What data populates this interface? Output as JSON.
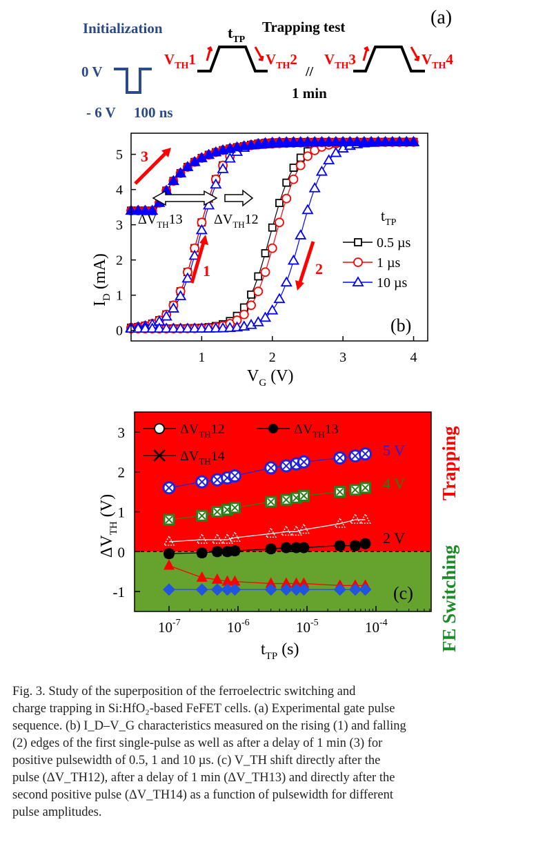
{
  "panel_a": {
    "label": "(a)",
    "init_title": "Initialization",
    "zero_v": "0 V",
    "neg_v": "- 6 V",
    "pulse_width": "100 ns",
    "ttp_main": "t",
    "ttp_sub": "TP",
    "trap_title": "Trapping test",
    "break": "//",
    "delay": "1 min",
    "vth_labels": [
      {
        "main": "V",
        "sub": "TH",
        "num": "1"
      },
      {
        "main": "V",
        "sub": "TH",
        "num": "2"
      },
      {
        "main": "V",
        "sub": "TH",
        "num": "3"
      },
      {
        "main": "V",
        "sub": "TH",
        "num": "4"
      }
    ]
  },
  "chart_data": [
    {
      "id": "b",
      "type": "line",
      "panel_label": "(b)",
      "xlabel": "V",
      "xlabel_sub": "G",
      "xlabel_unit": " (V)",
      "ylabel": "I",
      "ylabel_sub": "D",
      "ylabel_unit": " (mA)",
      "xlim": [
        0,
        4.2
      ],
      "ylim": [
        -0.3,
        5.6
      ],
      "xticks": [
        "1",
        "2",
        "3",
        "4"
      ],
      "yticks": [
        "0",
        "1",
        "2",
        "3",
        "4",
        "5"
      ],
      "legend_title_main": "t",
      "legend_title_sub": "TP",
      "annotations": {
        "arrow1": "1",
        "arrow2": "2",
        "arrow3": "3",
        "dvth13_main": "ΔV",
        "dvth13_sub": "TH",
        "dvth13_num": "13",
        "dvth12_main": "ΔV",
        "dvth12_sub": "TH",
        "dvth12_num": "12"
      },
      "series": [
        {
          "name": "0.5 µs",
          "color": "#000000",
          "marker": "square",
          "v_up": 0.95,
          "v_down": 1.97,
          "v_three": 0.35
        },
        {
          "name": "1 µs",
          "color": "#ff0000",
          "marker": "circle",
          "v_up": 0.95,
          "v_down": 2.05,
          "v_three": 0.35
        },
        {
          "name": "10 µs",
          "color": "#0000ff",
          "marker": "triangle",
          "v_up": 0.98,
          "v_down": 2.4,
          "v_three": 0.4
        }
      ]
    },
    {
      "id": "c",
      "type": "scatter",
      "panel_label": "(c)",
      "xlabel": "t",
      "xlabel_sub": "TP",
      "xlabel_unit": " (s)",
      "ylabel": "ΔV",
      "ylabel_sub": "TH",
      "ylabel_unit": " (V)",
      "x_scale": "log",
      "xlim_exp": [
        -7.5,
        -3.2
      ],
      "ylim": [
        -1.5,
        3.5
      ],
      "xticks": [
        {
          "base": "10",
          "exp": "-7"
        },
        {
          "base": "10",
          "exp": "-6"
        },
        {
          "base": "10",
          "exp": "-5"
        },
        {
          "base": "10",
          "exp": "-4"
        }
      ],
      "yticks": [
        "-1",
        "0",
        "1",
        "2",
        "3"
      ],
      "region_top": {
        "label": "Trapping",
        "color": "#ff0000"
      },
      "region_bottom": {
        "label": "FE Switching",
        "color": "#66a22e"
      },
      "legend": [
        {
          "name_main": "ΔV",
          "name_sub": "TH",
          "name_num": "12",
          "marker": "open-circle"
        },
        {
          "name_main": "ΔV",
          "name_sub": "TH",
          "name_num": "13",
          "marker": "filled-circle"
        },
        {
          "name_main": "ΔV",
          "name_sub": "TH",
          "name_num": "14",
          "marker": "cross"
        }
      ],
      "amplitude_labels": [
        {
          "text": "5 V",
          "color": "#2222dd"
        },
        {
          "text": "4 V",
          "color": "#2e7d1a"
        },
        {
          "text": "2 V",
          "color": "#000000"
        }
      ],
      "x_values_s": [
        1e-07,
        3e-07,
        5e-07,
        7e-07,
        9e-07,
        3e-06,
        5e-06,
        7e-06,
        9e-06,
        3e-05,
        5e-05,
        7e-05
      ],
      "series": [
        {
          "name": "5 V",
          "color": "#2222dd",
          "values": [
            1.6,
            1.75,
            1.8,
            1.85,
            1.9,
            2.1,
            2.15,
            2.2,
            2.25,
            2.35,
            2.4,
            2.45
          ]
        },
        {
          "name": "4 V",
          "color": "#2e7d1a",
          "values": [
            0.8,
            0.9,
            1.0,
            1.05,
            1.1,
            1.25,
            1.3,
            1.35,
            1.4,
            1.5,
            1.55,
            1.6
          ]
        },
        {
          "name": "2 V",
          "color": "#ffffff",
          "values": [
            0.25,
            0.3,
            0.3,
            0.3,
            0.35,
            0.45,
            0.5,
            0.5,
            0.55,
            0.7,
            0.8,
            0.8
          ]
        },
        {
          "name": "2 V",
          "color": "#000000",
          "values": [
            -0.05,
            -0.03,
            0.0,
            0.0,
            0.02,
            0.07,
            0.1,
            0.1,
            0.1,
            0.15,
            0.15,
            0.2
          ]
        },
        {
          "name": "2 V",
          "color": "#ff0000",
          "values": [
            -0.35,
            -0.65,
            -0.7,
            -0.75,
            -0.75,
            -0.8,
            -0.8,
            -0.8,
            -0.8,
            -0.85,
            -0.85,
            -0.85
          ]
        },
        {
          "name": "2 V",
          "color": "#2255dd",
          "values": [
            -0.95,
            -0.95,
            -0.95,
            -0.95,
            -0.95,
            -0.95,
            -0.95,
            -0.95,
            -0.95,
            -0.95,
            -0.95,
            -0.95
          ]
        }
      ]
    }
  ],
  "caption": {
    "lines": [
      "Fig. 3.    Study of the superposition of the ferroelectric switching and",
      "charge trapping in Si:HfO₂-based FeFET cells. (a) Experimental gate pulse",
      "sequence. (b) I_D–V_G characteristics measured on the rising (1) and falling",
      "(2) edges of the first single-pulse as well as after a delay of 1 min (3) for",
      "positive pulsewidth of 0.5, 1 and 10 µs. (c) V_TH shift directly after the",
      "pulse (ΔV_TH12), after a delay of 1 min (ΔV_TH13) and directly after the",
      "second positive pulse (ΔV_TH14) as a function of pulsewidth for different",
      "pulse amplitudes."
    ]
  }
}
